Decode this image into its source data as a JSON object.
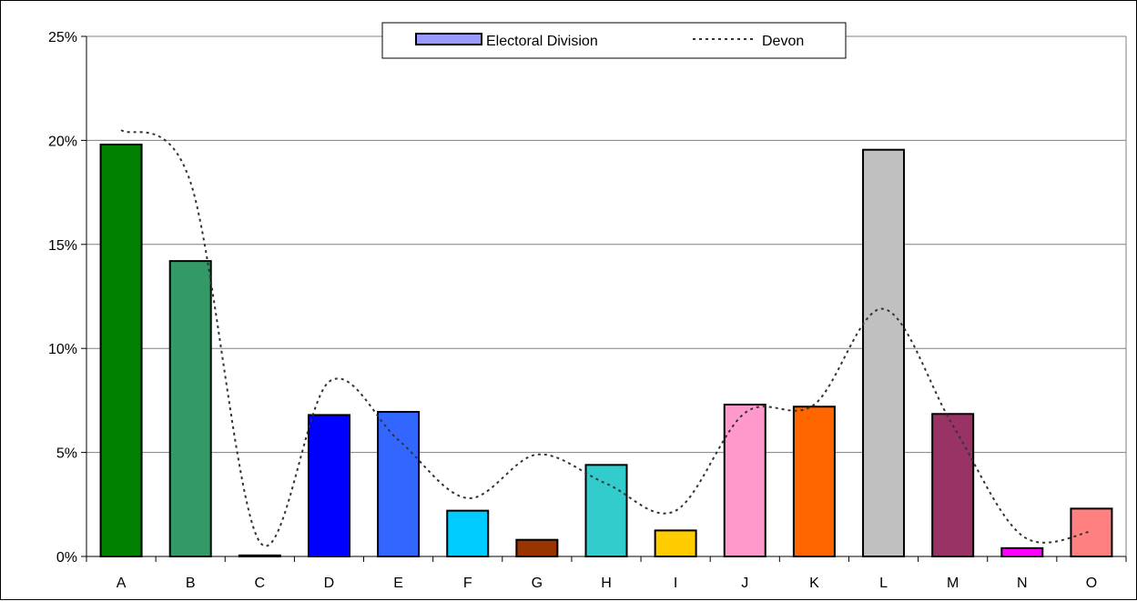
{
  "chart_data": {
    "type": "bar",
    "categories": [
      "A",
      "B",
      "C",
      "D",
      "E",
      "F",
      "G",
      "H",
      "I",
      "J",
      "K",
      "L",
      "M",
      "N",
      "O"
    ],
    "series": [
      {
        "name": "Electoral Division",
        "type": "bar",
        "values": [
          19.8,
          14.2,
          0.05,
          6.8,
          6.95,
          2.2,
          0.8,
          4.4,
          1.25,
          7.3,
          7.2,
          19.55,
          6.85,
          0.4,
          2.3
        ],
        "colors": [
          "#008000",
          "#339966",
          "#000000",
          "#0000FF",
          "#3366FF",
          "#00CCFF",
          "#993300",
          "#33CCCC",
          "#FFCC00",
          "#FF99CC",
          "#FF6600",
          "#C0C0C0",
          "#993366",
          "#FF00FF",
          "#FF8080"
        ]
      },
      {
        "name": "Devon",
        "type": "line",
        "style": "dotted",
        "color": "#333333",
        "values": [
          20.5,
          18.0,
          0.7,
          8.4,
          5.6,
          2.8,
          4.9,
          3.5,
          2.2,
          6.9,
          7.3,
          11.9,
          6.3,
          1.0,
          1.2
        ]
      }
    ],
    "ylim": [
      0,
      25
    ],
    "yticks": [
      0,
      5,
      10,
      15,
      20,
      25
    ],
    "ytick_labels": [
      "0%",
      "5%",
      "10%",
      "15%",
      "20%",
      "25%"
    ],
    "y_format": "percent",
    "grid": true,
    "legend": {
      "position": "top-center",
      "entries": [
        "Electoral Division",
        "Devon"
      ],
      "legend_swatch_color": "#9999FF"
    }
  }
}
